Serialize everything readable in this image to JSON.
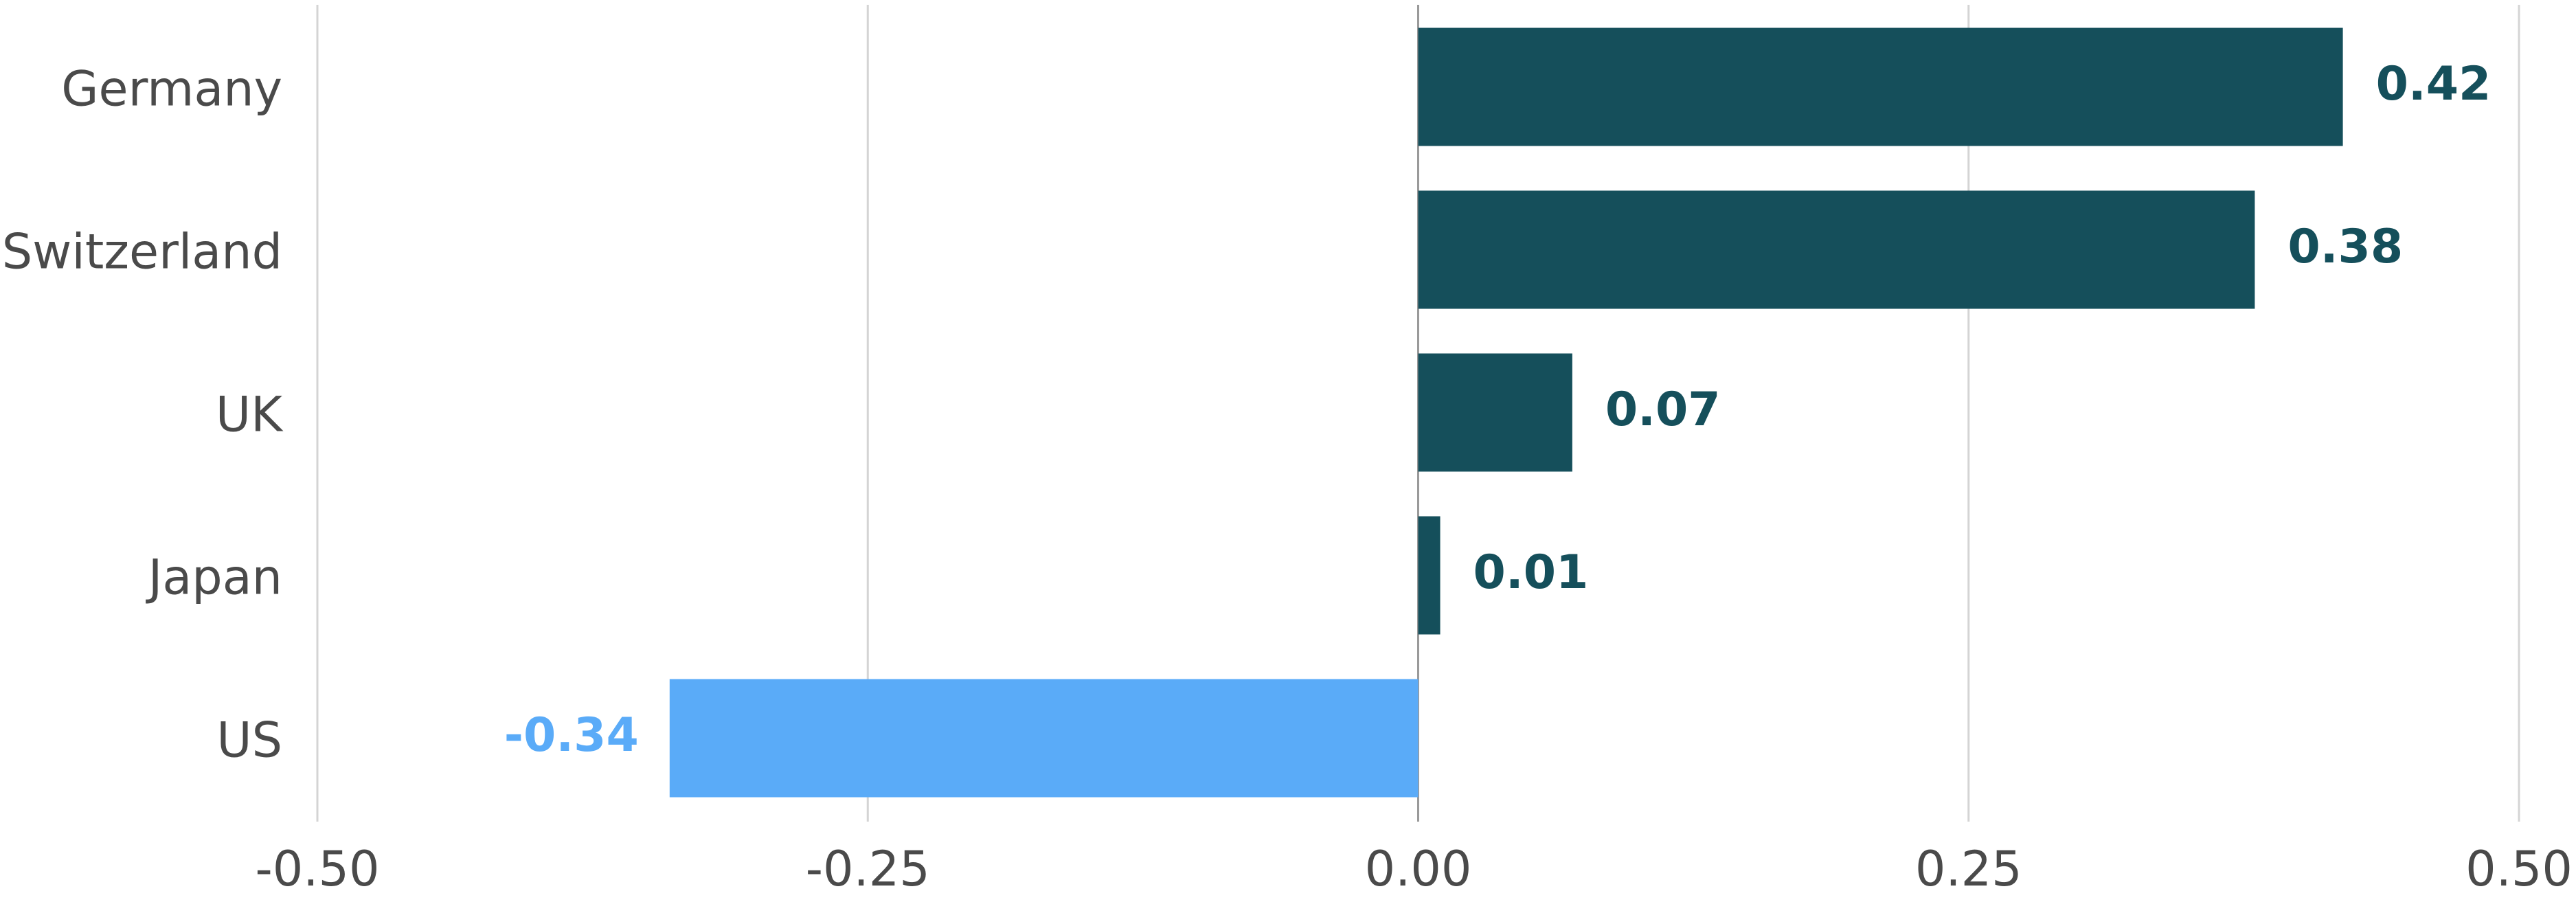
{
  "chart_data": {
    "type": "barh",
    "categories": [
      "Germany",
      "Switzerland",
      "UK",
      "Japan",
      "US"
    ],
    "values": [
      0.42,
      0.38,
      0.07,
      0.01,
      -0.34
    ],
    "colors": [
      "#154f5b",
      "#154f5b",
      "#154f5b",
      "#154f5b",
      "#5aabf8"
    ],
    "xlim": [
      -0.5,
      0.5
    ],
    "xticks": [
      {
        "value": -0.5,
        "label": "-0.50"
      },
      -0.25,
      {
        "value": 0,
        "label": "0.00"
      },
      0.25,
      {
        "value": 0.5,
        "label": "0.50"
      }
    ],
    "grid": true
  }
}
